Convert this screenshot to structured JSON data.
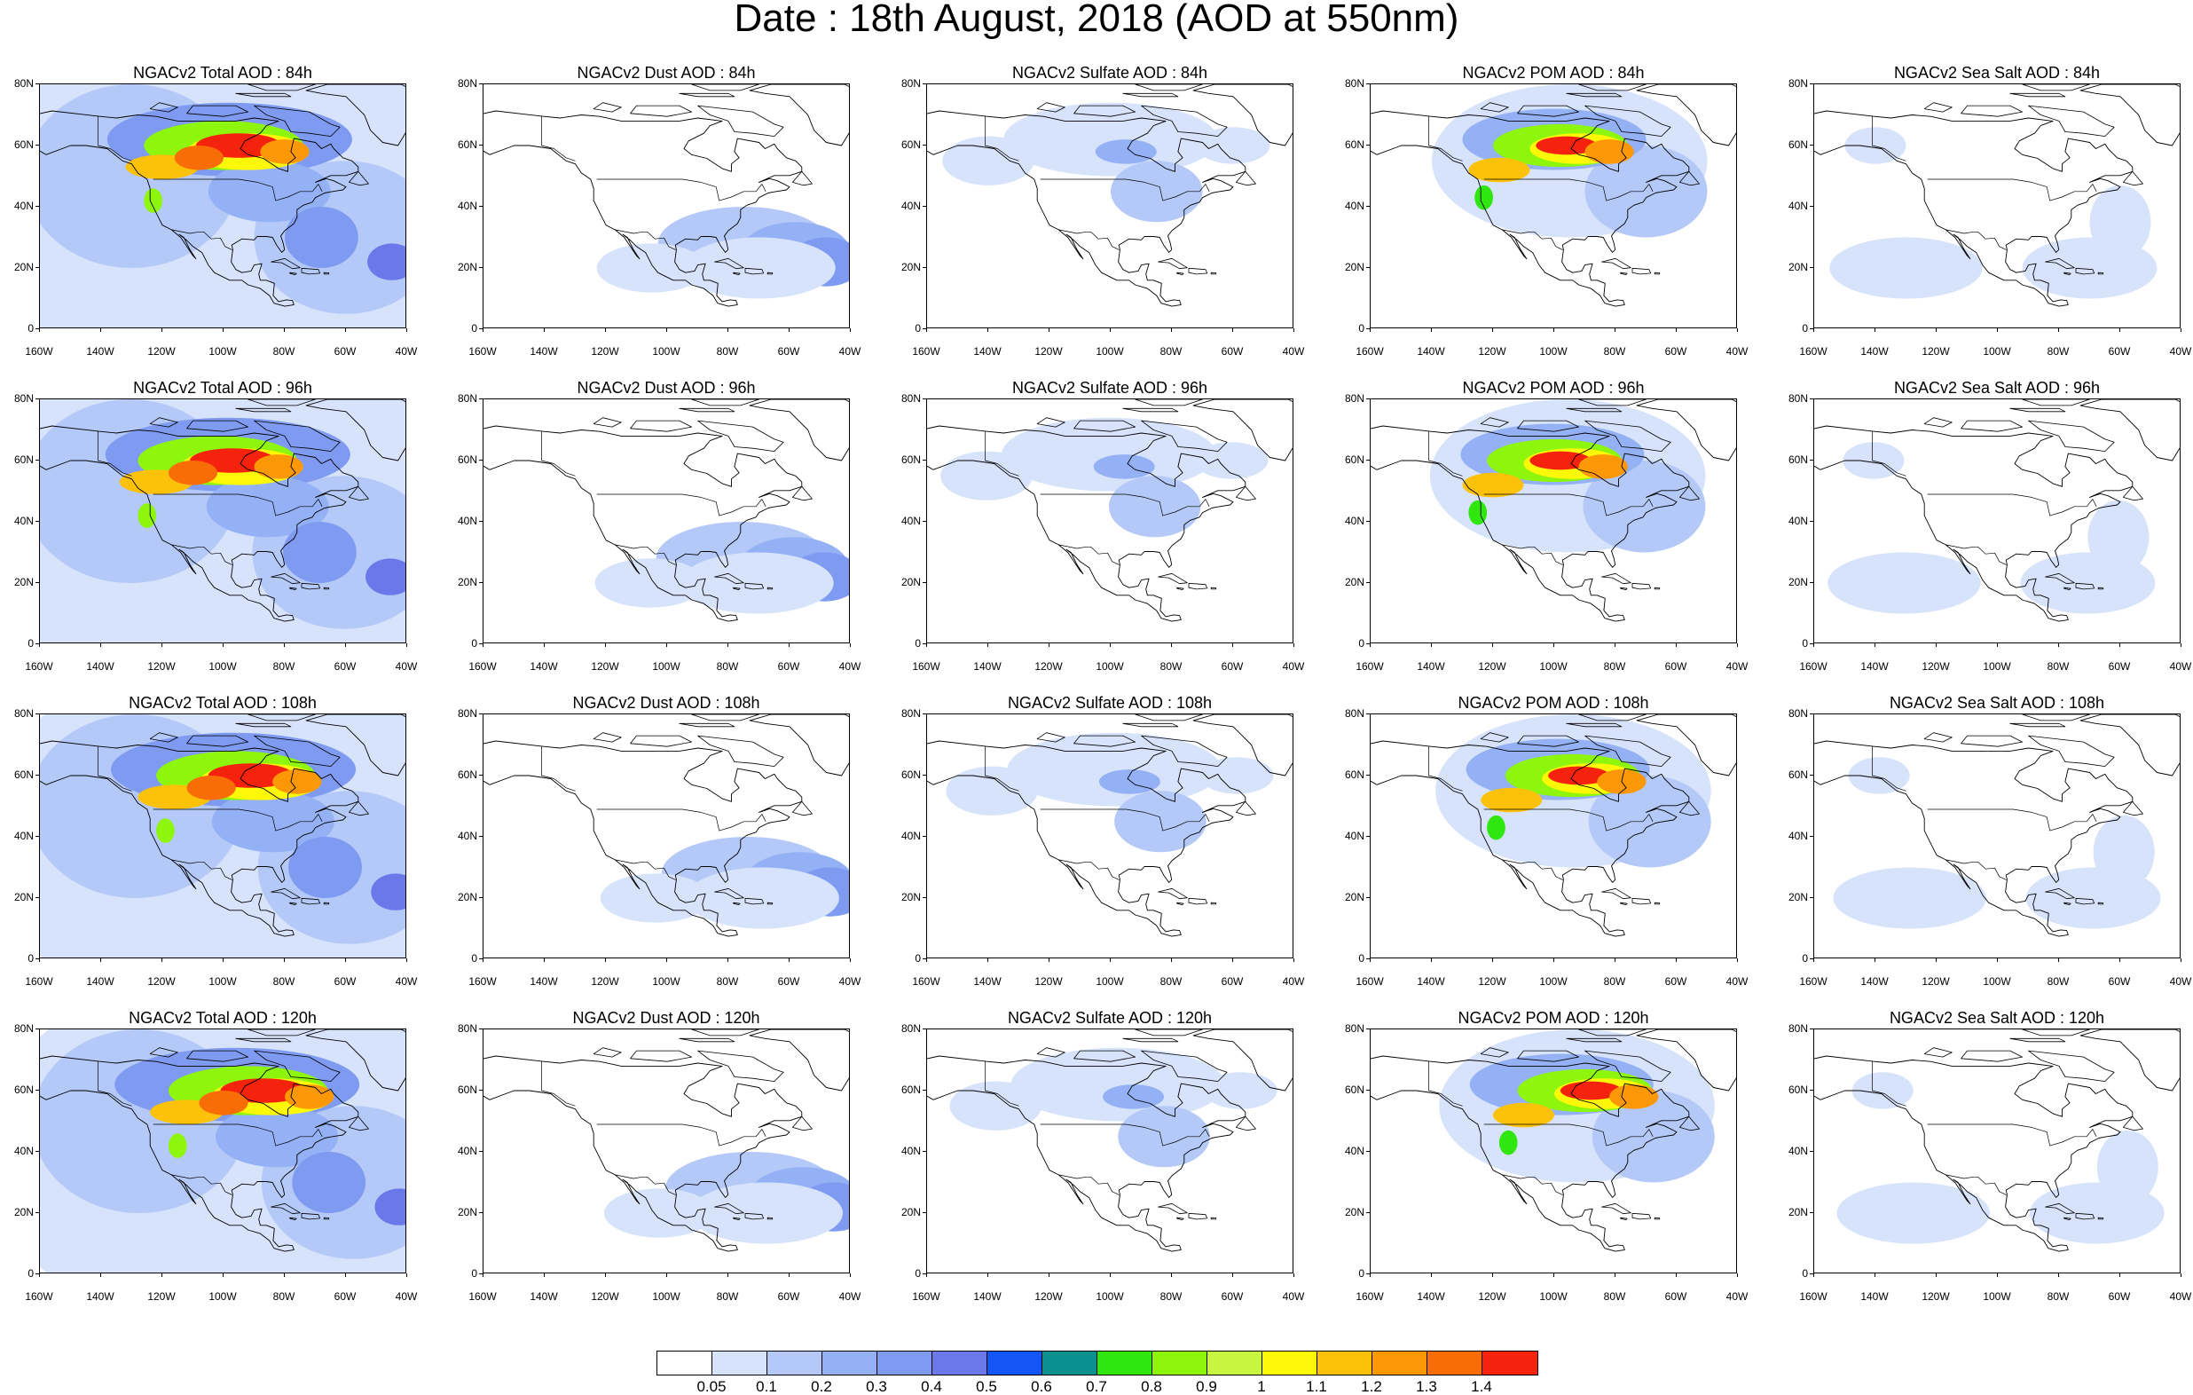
{
  "figure": {
    "title": "Date : 18th August, 2018 (AOD at 550nm)"
  },
  "map_axes": {
    "lon_labels": [
      "160W",
      "140W",
      "120W",
      "100W",
      "80W",
      "60W",
      "40W"
    ],
    "lat_labels": [
      "0",
      "20N",
      "40N",
      "60N",
      "80N"
    ],
    "lon_range": [
      -160,
      -40
    ],
    "lat_range": [
      0,
      80
    ]
  },
  "panels": [
    {
      "title": "NGACv2 Total AOD : 84h",
      "species": "total"
    },
    {
      "title": "NGACv2 Dust AOD : 84h",
      "species": "dust"
    },
    {
      "title": "NGACv2 Sulfate AOD : 84h",
      "species": "sulfate"
    },
    {
      "title": "NGACv2 POM AOD : 84h",
      "species": "pom"
    },
    {
      "title": "NGACv2 Sea Salt AOD : 84h",
      "species": "seasalt"
    },
    {
      "title": "NGACv2 Total AOD : 96h",
      "species": "total"
    },
    {
      "title": "NGACv2 Dust AOD : 96h",
      "species": "dust"
    },
    {
      "title": "NGACv2 Sulfate AOD : 96h",
      "species": "sulfate"
    },
    {
      "title": "NGACv2 POM AOD : 96h",
      "species": "pom"
    },
    {
      "title": "NGACv2 Sea Salt AOD : 96h",
      "species": "seasalt"
    },
    {
      "title": "NGACv2 Total AOD : 108h",
      "species": "total"
    },
    {
      "title": "NGACv2 Dust AOD : 108h",
      "species": "dust"
    },
    {
      "title": "NGACv2 Sulfate AOD : 108h",
      "species": "sulfate"
    },
    {
      "title": "NGACv2 POM AOD : 108h",
      "species": "pom"
    },
    {
      "title": "NGACv2 Sea Salt AOD : 108h",
      "species": "seasalt"
    },
    {
      "title": "NGACv2 Total AOD : 120h",
      "species": "total"
    },
    {
      "title": "NGACv2 Dust AOD : 120h",
      "species": "dust"
    },
    {
      "title": "NGACv2 Sulfate AOD : 120h",
      "species": "sulfate"
    },
    {
      "title": "NGACv2 POM AOD : 120h",
      "species": "pom"
    },
    {
      "title": "NGACv2 Sea Salt  AOD : 120h",
      "species": "seasalt"
    }
  ],
  "colorbar": {
    "labels": [
      "0.05",
      "0.1",
      "0.2",
      "0.3",
      "0.4",
      "0.5",
      "0.6",
      "0.7",
      "0.8",
      "0.9",
      "1",
      "1.1",
      "1.2",
      "1.3",
      "1.4"
    ],
    "colors": [
      "#ffffff",
      "#d7e3fb",
      "#b4c9f7",
      "#93b1f4",
      "#7f9bf1",
      "#6a78ea",
      "#1455f5",
      "#0c8f8f",
      "#2fe60f",
      "#8ef50c",
      "#c8f540",
      "#fcf807",
      "#fcc20a",
      "#fc9705",
      "#f86d06",
      "#f5230e"
    ]
  }
}
